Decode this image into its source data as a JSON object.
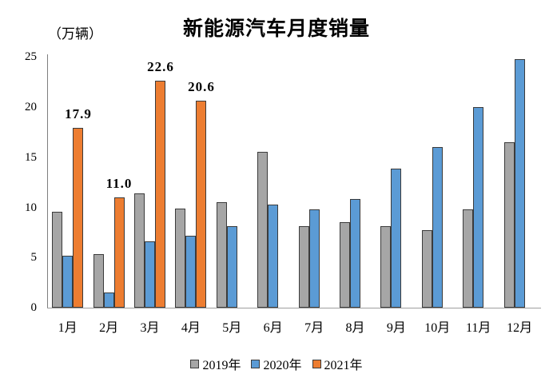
{
  "chart_data": {
    "type": "bar",
    "title": "新能源汽车月度销量",
    "unit_label": "（万辆）",
    "categories": [
      "1月",
      "2月",
      "3月",
      "4月",
      "5月",
      "6月",
      "7月",
      "8月",
      "9月",
      "10月",
      "11月",
      "12月"
    ],
    "series": [
      {
        "name": "2019年",
        "color": "#a6a6a6",
        "values": [
          9.6,
          5.3,
          11.4,
          9.9,
          10.5,
          15.5,
          8.1,
          8.5,
          8.1,
          7.7,
          9.8,
          16.5
        ]
      },
      {
        "name": "2020年",
        "color": "#5b9bd5",
        "values": [
          5.2,
          1.5,
          6.6,
          7.2,
          8.1,
          10.3,
          9.8,
          10.8,
          13.9,
          16.0,
          20.0,
          24.8
        ]
      },
      {
        "name": "2021年",
        "color": "#ed7d31",
        "values": [
          17.9,
          11.0,
          22.6,
          20.6,
          null,
          null,
          null,
          null,
          null,
          null,
          null,
          null
        ],
        "data_labels": [
          "17.9",
          "11.0",
          "22.6",
          "20.6"
        ]
      }
    ],
    "ylim": [
      0,
      25
    ],
    "yticks": [
      0,
      5,
      10,
      15,
      20,
      25
    ],
    "grid": false,
    "legend_position": "bottom",
    "bar_border_color": "#3b3b3b",
    "axis_color": "#9e9e9e",
    "background": "#ffffff"
  }
}
